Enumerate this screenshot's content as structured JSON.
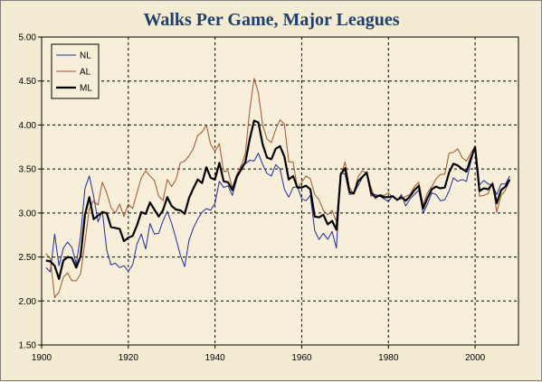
{
  "chart_data": {
    "type": "line",
    "title": "Walks Per Game, Major Leagues",
    "xlabel": "",
    "ylabel": "",
    "xlim": [
      1900,
      2010
    ],
    "ylim": [
      1.5,
      5.0
    ],
    "x_ticks": [
      1900,
      1920,
      1940,
      1960,
      1980,
      2000
    ],
    "x_tick_labels": [
      "1900",
      "1920",
      "1940",
      "1960",
      "1980",
      "2000"
    ],
    "y_ticks": [
      1.5,
      2.0,
      2.5,
      3.0,
      3.5,
      4.0,
      4.5,
      5.0
    ],
    "y_tick_labels": [
      "1.50",
      "2.00",
      "2.50",
      "3.00",
      "3.50",
      "4.00",
      "4.50",
      "5.00"
    ],
    "grid": "dashed",
    "legend_position": "top-left",
    "series": [
      {
        "name": "NL",
        "color": "#1f2c9b",
        "x": [
          1901,
          1902,
          1903,
          1904,
          1905,
          1906,
          1907,
          1908,
          1909,
          1910,
          1911,
          1912,
          1913,
          1914,
          1915,
          1916,
          1917,
          1918,
          1919,
          1920,
          1921,
          1922,
          1923,
          1924,
          1925,
          1926,
          1927,
          1928,
          1929,
          1930,
          1931,
          1932,
          1933,
          1934,
          1935,
          1936,
          1937,
          1938,
          1939,
          1940,
          1941,
          1942,
          1943,
          1944,
          1945,
          1946,
          1947,
          1948,
          1949,
          1950,
          1951,
          1952,
          1953,
          1954,
          1955,
          1956,
          1957,
          1958,
          1959,
          1960,
          1961,
          1962,
          1963,
          1964,
          1965,
          1966,
          1967,
          1968,
          1969,
          1970,
          1971,
          1972,
          1973,
          1974,
          1975,
          1976,
          1977,
          1978,
          1979,
          1980,
          1981,
          1982,
          1983,
          1984,
          1985,
          1986,
          1987,
          1988,
          1989,
          1990,
          1991,
          1992,
          1993,
          1994,
          1995,
          1996,
          1997,
          1998,
          1999,
          2000,
          2001,
          2002,
          2003,
          2004,
          2005,
          2006,
          2007,
          2008
        ],
        "values": [
          2.38,
          2.33,
          2.76,
          2.4,
          2.6,
          2.67,
          2.61,
          2.42,
          2.75,
          3.28,
          3.42,
          3.19,
          2.9,
          3.02,
          2.58,
          2.41,
          2.43,
          2.38,
          2.4,
          2.34,
          2.41,
          2.65,
          2.76,
          2.59,
          2.88,
          2.76,
          2.77,
          2.91,
          3.02,
          2.88,
          2.71,
          2.52,
          2.39,
          2.69,
          2.83,
          2.93,
          3.01,
          3.05,
          3.03,
          3.11,
          3.36,
          3.29,
          3.31,
          3.2,
          3.38,
          3.54,
          3.56,
          3.6,
          3.59,
          3.68,
          3.55,
          3.45,
          3.42,
          3.55,
          3.5,
          3.27,
          3.18,
          3.29,
          3.3,
          3.16,
          3.14,
          3.2,
          2.8,
          2.7,
          2.77,
          2.7,
          2.79,
          2.6,
          3.46,
          3.44,
          3.21,
          3.22,
          3.31,
          3.4,
          3.47,
          3.19,
          3.21,
          3.19,
          3.16,
          3.13,
          3.2,
          3.14,
          3.21,
          3.08,
          3.16,
          3.21,
          3.26,
          3.0,
          3.1,
          3.23,
          3.21,
          3.14,
          3.15,
          3.25,
          3.4,
          3.36,
          3.38,
          3.36,
          3.58,
          3.75,
          3.32,
          3.37,
          3.33,
          3.32,
          3.21,
          3.33,
          3.33,
          3.42
        ]
      },
      {
        "name": "AL",
        "color": "#a0522d",
        "x": [
          1901,
          1902,
          1903,
          1904,
          1905,
          1906,
          1907,
          1908,
          1909,
          1910,
          1911,
          1912,
          1913,
          1914,
          1915,
          1916,
          1917,
          1918,
          1919,
          1920,
          1921,
          1922,
          1923,
          1924,
          1925,
          1926,
          1927,
          1928,
          1929,
          1930,
          1931,
          1932,
          1933,
          1934,
          1935,
          1936,
          1937,
          1938,
          1939,
          1940,
          1941,
          1942,
          1943,
          1944,
          1945,
          1946,
          1947,
          1948,
          1949,
          1950,
          1951,
          1952,
          1953,
          1954,
          1955,
          1956,
          1957,
          1958,
          1959,
          1960,
          1961,
          1962,
          1963,
          1964,
          1965,
          1966,
          1967,
          1968,
          1969,
          1970,
          1971,
          1972,
          1973,
          1974,
          1975,
          1976,
          1977,
          1978,
          1979,
          1980,
          1981,
          1982,
          1983,
          1984,
          1985,
          1986,
          1987,
          1988,
          1989,
          1990,
          1991,
          1992,
          1993,
          1994,
          1995,
          1996,
          1997,
          1998,
          1999,
          2000,
          2001,
          2002,
          2003,
          2004,
          2005,
          2006,
          2007,
          2008
        ],
        "values": [
          2.54,
          2.48,
          2.04,
          2.1,
          2.27,
          2.32,
          2.23,
          2.23,
          2.31,
          2.67,
          3.05,
          3.14,
          3.09,
          3.35,
          3.23,
          3.06,
          3.0,
          3.1,
          2.96,
          3.1,
          3.05,
          3.23,
          3.4,
          3.48,
          3.42,
          3.37,
          3.19,
          3.14,
          3.38,
          3.3,
          3.38,
          3.57,
          3.59,
          3.65,
          3.73,
          3.88,
          3.92,
          4.0,
          3.78,
          3.7,
          3.79,
          3.47,
          3.48,
          3.28,
          3.44,
          3.52,
          3.68,
          4.17,
          4.53,
          4.37,
          4.0,
          3.84,
          3.8,
          3.95,
          4.06,
          4.01,
          3.58,
          3.58,
          3.28,
          3.35,
          3.42,
          3.39,
          3.21,
          3.15,
          3.03,
          2.98,
          3.03,
          2.9,
          3.43,
          3.58,
          3.29,
          3.22,
          3.41,
          3.48,
          3.45,
          3.29,
          3.16,
          3.21,
          3.2,
          3.23,
          3.18,
          3.15,
          3.16,
          3.19,
          3.21,
          3.3,
          3.35,
          3.09,
          3.23,
          3.3,
          3.39,
          3.44,
          3.44,
          3.68,
          3.69,
          3.73,
          3.63,
          3.59,
          3.68,
          3.76,
          3.19,
          3.2,
          3.22,
          3.35,
          3.01,
          3.2,
          3.26,
          3.37
        ]
      },
      {
        "name": "ML",
        "color": "#000000",
        "x": [
          1901,
          1902,
          1903,
          1904,
          1905,
          1906,
          1907,
          1908,
          1909,
          1910,
          1911,
          1912,
          1913,
          1914,
          1915,
          1916,
          1917,
          1918,
          1919,
          1920,
          1921,
          1922,
          1923,
          1924,
          1925,
          1926,
          1927,
          1928,
          1929,
          1930,
          1931,
          1932,
          1933,
          1934,
          1935,
          1936,
          1937,
          1938,
          1939,
          1940,
          1941,
          1942,
          1943,
          1944,
          1945,
          1946,
          1947,
          1948,
          1949,
          1950,
          1951,
          1952,
          1953,
          1954,
          1955,
          1956,
          1957,
          1958,
          1959,
          1960,
          1961,
          1962,
          1963,
          1964,
          1965,
          1966,
          1967,
          1968,
          1969,
          1970,
          1971,
          1972,
          1973,
          1974,
          1975,
          1976,
          1977,
          1978,
          1979,
          1980,
          1981,
          1982,
          1983,
          1984,
          1985,
          1986,
          1987,
          1988,
          1989,
          1990,
          1991,
          1992,
          1993,
          1994,
          1995,
          1996,
          1997,
          1998,
          1999,
          2000,
          2001,
          2002,
          2003,
          2004,
          2005,
          2006,
          2007,
          2008
        ],
        "values": [
          2.46,
          2.45,
          2.4,
          2.25,
          2.46,
          2.5,
          2.49,
          2.38,
          2.51,
          2.98,
          3.18,
          2.93,
          2.97,
          3.01,
          3.0,
          2.84,
          2.83,
          2.82,
          2.68,
          2.72,
          2.74,
          2.86,
          3.01,
          2.99,
          3.12,
          3.04,
          2.96,
          3.03,
          3.18,
          3.08,
          3.04,
          3.03,
          2.99,
          3.17,
          3.28,
          3.38,
          3.34,
          3.52,
          3.4,
          3.38,
          3.57,
          3.36,
          3.35,
          3.26,
          3.41,
          3.49,
          3.58,
          3.84,
          4.05,
          4.03,
          3.78,
          3.63,
          3.61,
          3.73,
          3.76,
          3.64,
          3.38,
          3.42,
          3.29,
          3.29,
          3.31,
          3.27,
          2.96,
          2.95,
          2.98,
          2.87,
          2.91,
          2.81,
          3.44,
          3.51,
          3.24,
          3.22,
          3.36,
          3.41,
          3.46,
          3.23,
          3.18,
          3.2,
          3.18,
          3.18,
          3.19,
          3.15,
          3.18,
          3.14,
          3.19,
          3.26,
          3.31,
          3.05,
          3.17,
          3.27,
          3.3,
          3.28,
          3.29,
          3.46,
          3.56,
          3.54,
          3.5,
          3.47,
          3.62,
          3.75,
          3.25,
          3.28,
          3.27,
          3.33,
          3.11,
          3.26,
          3.3,
          3.38
        ]
      }
    ]
  }
}
